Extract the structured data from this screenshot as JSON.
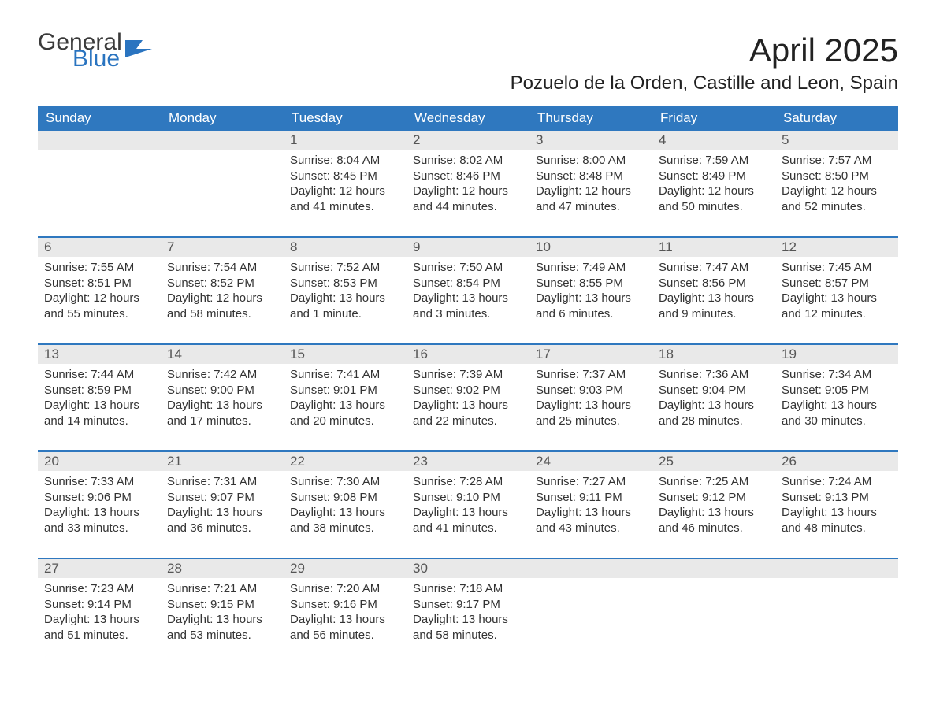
{
  "branding": {
    "line1": "General",
    "line2": "Blue",
    "line1_color": "#3a3a3a",
    "line2_color": "#2a74c0",
    "flag_color": "#2a74c0"
  },
  "title": {
    "month": "April 2025",
    "location": "Pozuelo de la Orden, Castille and Leon, Spain",
    "month_fontsize": 42,
    "location_fontsize": 24,
    "text_color": "#222222"
  },
  "calendar": {
    "header_bg": "#2f78bf",
    "header_fg": "#ffffff",
    "daynum_bg": "#e9e9e9",
    "daynum_fg": "#555555",
    "row_separator_color": "#2f78bf",
    "cell_text_color": "#333333",
    "cell_fontsize": 15,
    "day_headers": [
      "Sunday",
      "Monday",
      "Tuesday",
      "Wednesday",
      "Thursday",
      "Friday",
      "Saturday"
    ],
    "weeks": [
      {
        "nums": [
          "",
          "",
          "1",
          "2",
          "3",
          "4",
          "5"
        ],
        "cells": [
          null,
          null,
          {
            "sunrise": "Sunrise: 8:04 AM",
            "sunset": "Sunset: 8:45 PM",
            "day1": "Daylight: 12 hours",
            "day2": "and 41 minutes."
          },
          {
            "sunrise": "Sunrise: 8:02 AM",
            "sunset": "Sunset: 8:46 PM",
            "day1": "Daylight: 12 hours",
            "day2": "and 44 minutes."
          },
          {
            "sunrise": "Sunrise: 8:00 AM",
            "sunset": "Sunset: 8:48 PM",
            "day1": "Daylight: 12 hours",
            "day2": "and 47 minutes."
          },
          {
            "sunrise": "Sunrise: 7:59 AM",
            "sunset": "Sunset: 8:49 PM",
            "day1": "Daylight: 12 hours",
            "day2": "and 50 minutes."
          },
          {
            "sunrise": "Sunrise: 7:57 AM",
            "sunset": "Sunset: 8:50 PM",
            "day1": "Daylight: 12 hours",
            "day2": "and 52 minutes."
          }
        ]
      },
      {
        "nums": [
          "6",
          "7",
          "8",
          "9",
          "10",
          "11",
          "12"
        ],
        "cells": [
          {
            "sunrise": "Sunrise: 7:55 AM",
            "sunset": "Sunset: 8:51 PM",
            "day1": "Daylight: 12 hours",
            "day2": "and 55 minutes."
          },
          {
            "sunrise": "Sunrise: 7:54 AM",
            "sunset": "Sunset: 8:52 PM",
            "day1": "Daylight: 12 hours",
            "day2": "and 58 minutes."
          },
          {
            "sunrise": "Sunrise: 7:52 AM",
            "sunset": "Sunset: 8:53 PM",
            "day1": "Daylight: 13 hours",
            "day2": "and 1 minute."
          },
          {
            "sunrise": "Sunrise: 7:50 AM",
            "sunset": "Sunset: 8:54 PM",
            "day1": "Daylight: 13 hours",
            "day2": "and 3 minutes."
          },
          {
            "sunrise": "Sunrise: 7:49 AM",
            "sunset": "Sunset: 8:55 PM",
            "day1": "Daylight: 13 hours",
            "day2": "and 6 minutes."
          },
          {
            "sunrise": "Sunrise: 7:47 AM",
            "sunset": "Sunset: 8:56 PM",
            "day1": "Daylight: 13 hours",
            "day2": "and 9 minutes."
          },
          {
            "sunrise": "Sunrise: 7:45 AM",
            "sunset": "Sunset: 8:57 PM",
            "day1": "Daylight: 13 hours",
            "day2": "and 12 minutes."
          }
        ]
      },
      {
        "nums": [
          "13",
          "14",
          "15",
          "16",
          "17",
          "18",
          "19"
        ],
        "cells": [
          {
            "sunrise": "Sunrise: 7:44 AM",
            "sunset": "Sunset: 8:59 PM",
            "day1": "Daylight: 13 hours",
            "day2": "and 14 minutes."
          },
          {
            "sunrise": "Sunrise: 7:42 AM",
            "sunset": "Sunset: 9:00 PM",
            "day1": "Daylight: 13 hours",
            "day2": "and 17 minutes."
          },
          {
            "sunrise": "Sunrise: 7:41 AM",
            "sunset": "Sunset: 9:01 PM",
            "day1": "Daylight: 13 hours",
            "day2": "and 20 minutes."
          },
          {
            "sunrise": "Sunrise: 7:39 AM",
            "sunset": "Sunset: 9:02 PM",
            "day1": "Daylight: 13 hours",
            "day2": "and 22 minutes."
          },
          {
            "sunrise": "Sunrise: 7:37 AM",
            "sunset": "Sunset: 9:03 PM",
            "day1": "Daylight: 13 hours",
            "day2": "and 25 minutes."
          },
          {
            "sunrise": "Sunrise: 7:36 AM",
            "sunset": "Sunset: 9:04 PM",
            "day1": "Daylight: 13 hours",
            "day2": "and 28 minutes."
          },
          {
            "sunrise": "Sunrise: 7:34 AM",
            "sunset": "Sunset: 9:05 PM",
            "day1": "Daylight: 13 hours",
            "day2": "and 30 minutes."
          }
        ]
      },
      {
        "nums": [
          "20",
          "21",
          "22",
          "23",
          "24",
          "25",
          "26"
        ],
        "cells": [
          {
            "sunrise": "Sunrise: 7:33 AM",
            "sunset": "Sunset: 9:06 PM",
            "day1": "Daylight: 13 hours",
            "day2": "and 33 minutes."
          },
          {
            "sunrise": "Sunrise: 7:31 AM",
            "sunset": "Sunset: 9:07 PM",
            "day1": "Daylight: 13 hours",
            "day2": "and 36 minutes."
          },
          {
            "sunrise": "Sunrise: 7:30 AM",
            "sunset": "Sunset: 9:08 PM",
            "day1": "Daylight: 13 hours",
            "day2": "and 38 minutes."
          },
          {
            "sunrise": "Sunrise: 7:28 AM",
            "sunset": "Sunset: 9:10 PM",
            "day1": "Daylight: 13 hours",
            "day2": "and 41 minutes."
          },
          {
            "sunrise": "Sunrise: 7:27 AM",
            "sunset": "Sunset: 9:11 PM",
            "day1": "Daylight: 13 hours",
            "day2": "and 43 minutes."
          },
          {
            "sunrise": "Sunrise: 7:25 AM",
            "sunset": "Sunset: 9:12 PM",
            "day1": "Daylight: 13 hours",
            "day2": "and 46 minutes."
          },
          {
            "sunrise": "Sunrise: 7:24 AM",
            "sunset": "Sunset: 9:13 PM",
            "day1": "Daylight: 13 hours",
            "day2": "and 48 minutes."
          }
        ]
      },
      {
        "nums": [
          "27",
          "28",
          "29",
          "30",
          "",
          "",
          ""
        ],
        "cells": [
          {
            "sunrise": "Sunrise: 7:23 AM",
            "sunset": "Sunset: 9:14 PM",
            "day1": "Daylight: 13 hours",
            "day2": "and 51 minutes."
          },
          {
            "sunrise": "Sunrise: 7:21 AM",
            "sunset": "Sunset: 9:15 PM",
            "day1": "Daylight: 13 hours",
            "day2": "and 53 minutes."
          },
          {
            "sunrise": "Sunrise: 7:20 AM",
            "sunset": "Sunset: 9:16 PM",
            "day1": "Daylight: 13 hours",
            "day2": "and 56 minutes."
          },
          {
            "sunrise": "Sunrise: 7:18 AM",
            "sunset": "Sunset: 9:17 PM",
            "day1": "Daylight: 13 hours",
            "day2": "and 58 minutes."
          },
          null,
          null,
          null
        ]
      }
    ]
  }
}
